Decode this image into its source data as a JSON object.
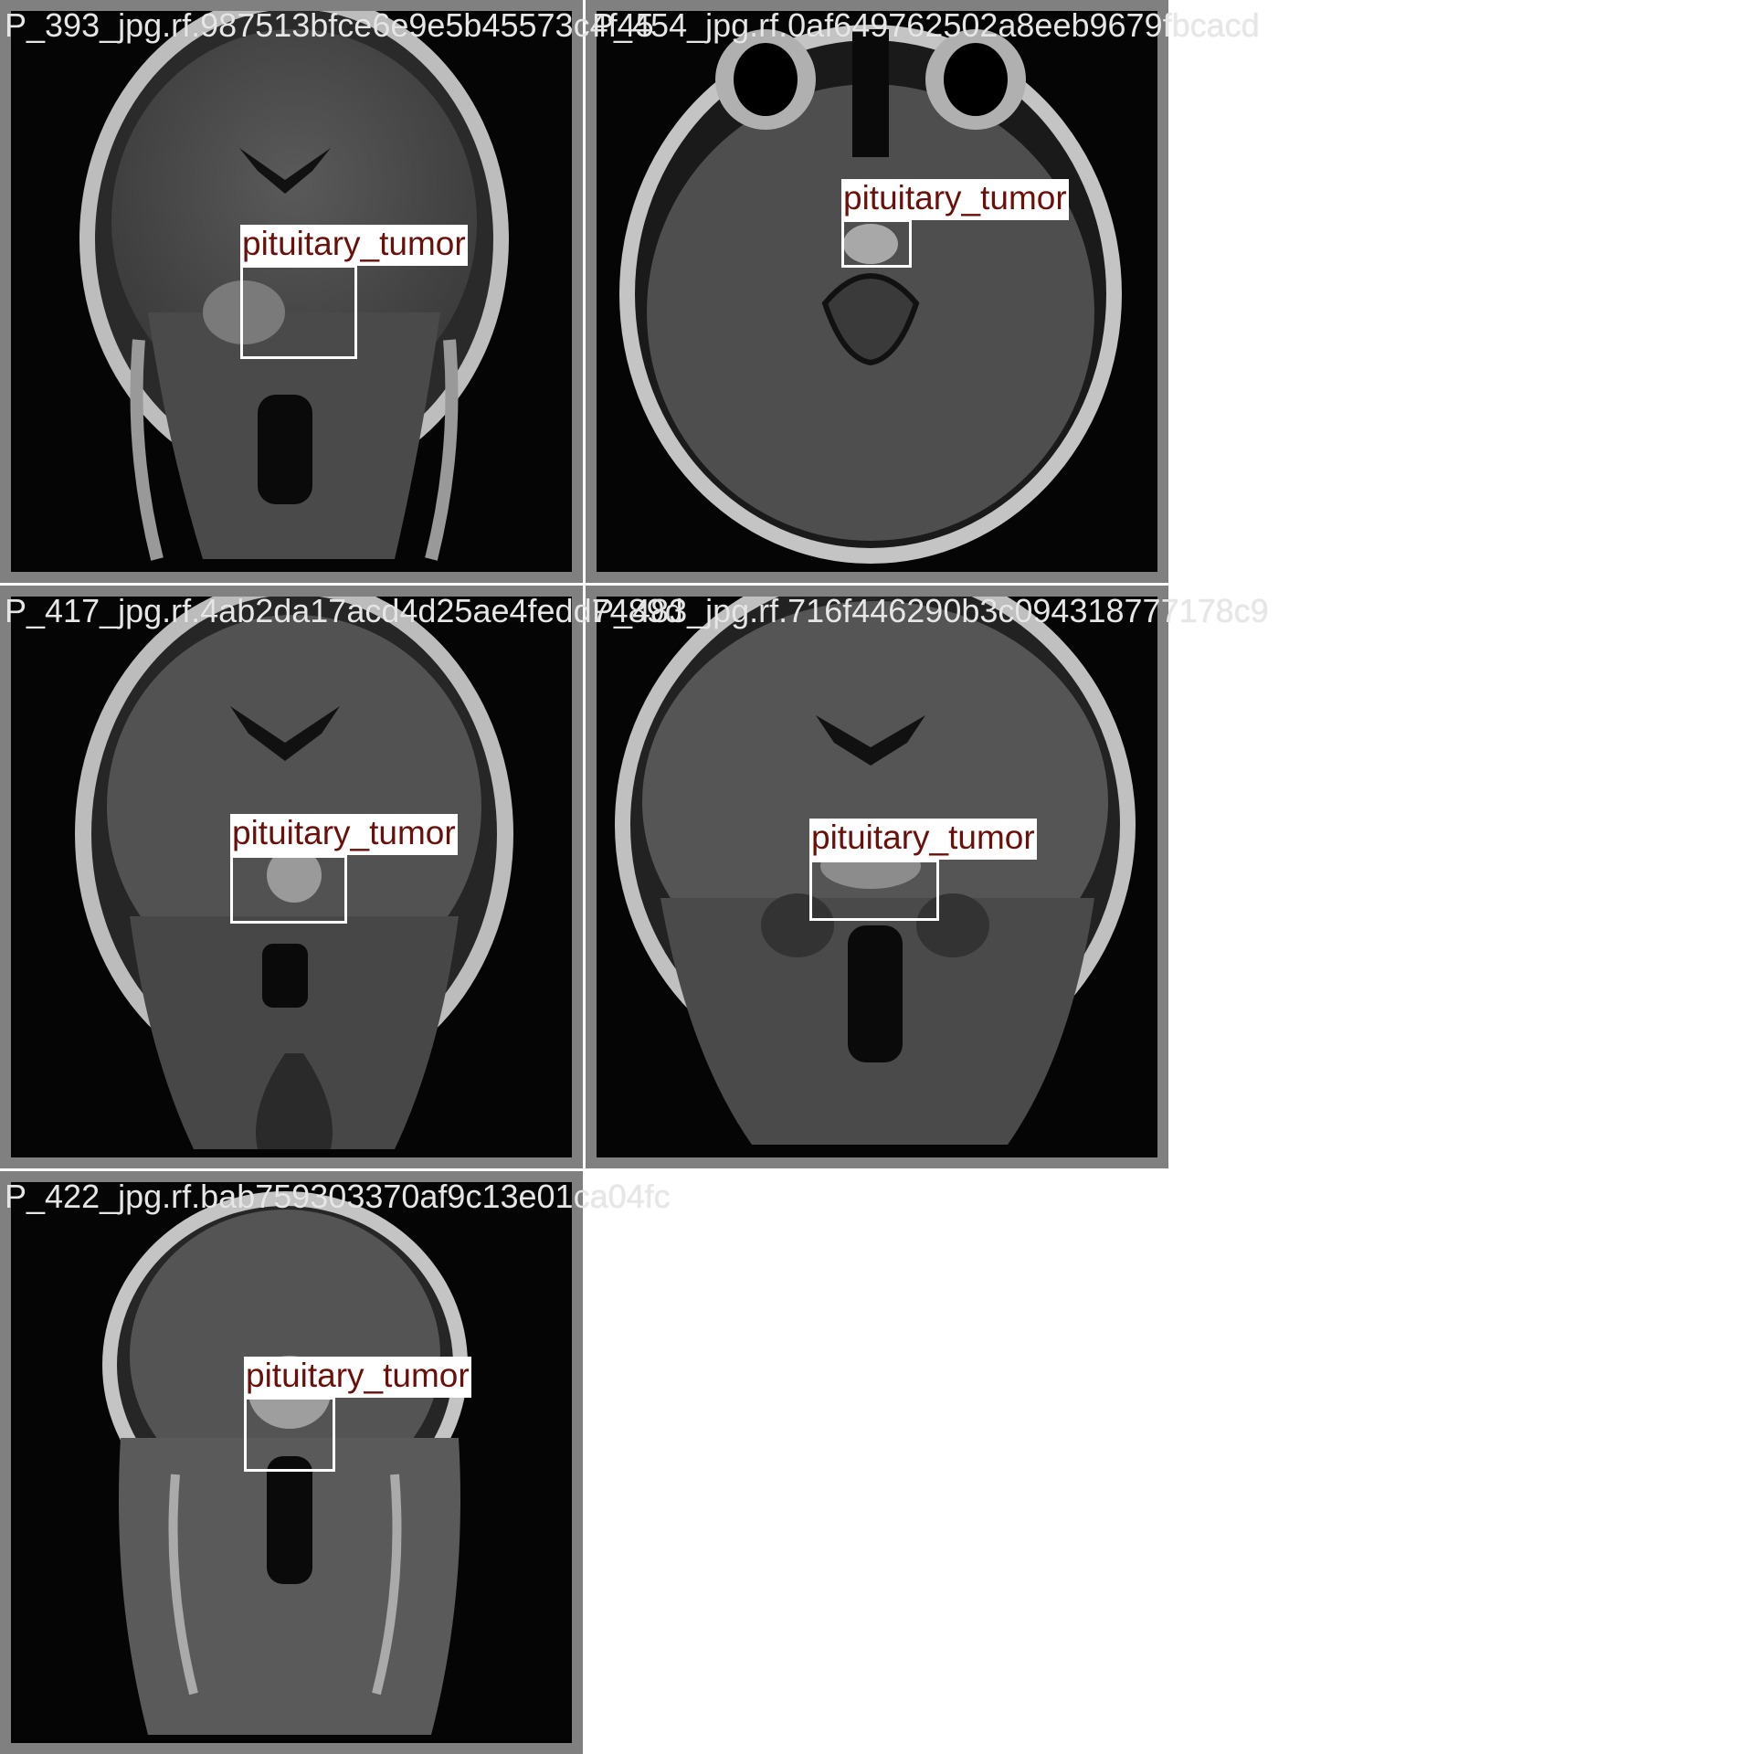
{
  "tiles": [
    {
      "filename": "P_393_jpg.rf.987513bfce6e9e5b45573c4f45",
      "label": "pituitary_tumor",
      "view": "coronal"
    },
    {
      "filename": "P_454_jpg.rf.0af649762502a8eeb9679fbcacd",
      "label": "pituitary_tumor",
      "view": "axial"
    },
    {
      "filename": "P_417_jpg.rf.4ab2da17acd4d25ae4fedd7489d",
      "label": "pituitary_tumor",
      "view": "coronal"
    },
    {
      "filename": "P_483_jpg.rf.716f446290b3c094318777178c9",
      "label": "pituitary_tumor",
      "view": "coronal"
    },
    {
      "filename": "P_422_jpg.rf.bab759303370af9c13e01ca04fc",
      "label": "pituitary_tumor",
      "view": "coronal"
    }
  ],
  "colors": {
    "frame": "#808080",
    "box": "#ffffff",
    "label_text": "#6b0f0a",
    "filename_text": "#e6e6e6"
  }
}
